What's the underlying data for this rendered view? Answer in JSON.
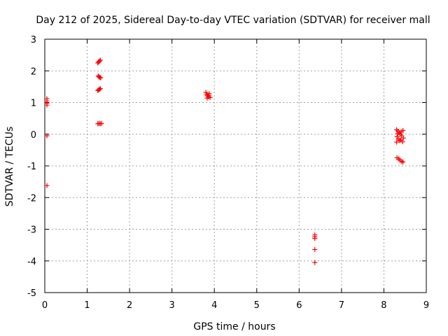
{
  "chart_data": {
    "type": "scatter",
    "title": "Day 212 of 2025, Sidereal Day-to-day VTEC variation (SDTVAR) for receiver mall",
    "xlabel": "GPS time / hours",
    "ylabel": "SDTVAR / TECUs",
    "xlim": [
      0,
      9
    ],
    "ylim": [
      -5,
      3
    ],
    "x_ticks": [
      0,
      1,
      2,
      3,
      4,
      5,
      6,
      7,
      8,
      9
    ],
    "y_ticks": [
      -5,
      -4,
      -3,
      -2,
      -1,
      0,
      1,
      2,
      3
    ],
    "x_tick_labels": [
      "0",
      "1",
      "2",
      "3",
      "4",
      "5",
      "6",
      "7",
      "8",
      "9"
    ],
    "y_tick_labels": [
      "-5",
      "-4",
      "-3",
      "-2",
      "-1",
      "0",
      "1",
      "2",
      "3"
    ],
    "grid": true,
    "marker": "+",
    "marker_color": "#ff0000",
    "series": [
      {
        "name": "SDTVAR",
        "points": [
          [
            0.05,
            1.12
          ],
          [
            0.05,
            1.05
          ],
          [
            0.05,
            0.98
          ],
          [
            0.05,
            0.92
          ],
          [
            0.05,
            -0.05
          ],
          [
            0.05,
            -1.62
          ],
          [
            1.25,
            2.25
          ],
          [
            1.27,
            2.28
          ],
          [
            1.29,
            2.31
          ],
          [
            1.31,
            2.34
          ],
          [
            1.26,
            1.84
          ],
          [
            1.28,
            1.81
          ],
          [
            1.3,
            1.79
          ],
          [
            1.32,
            1.78
          ],
          [
            1.25,
            1.38
          ],
          [
            1.27,
            1.4
          ],
          [
            1.29,
            1.42
          ],
          [
            1.31,
            1.44
          ],
          [
            1.25,
            0.33
          ],
          [
            1.28,
            0.34
          ],
          [
            1.31,
            0.33
          ],
          [
            1.34,
            0.34
          ],
          [
            3.8,
            1.32
          ],
          [
            3.82,
            1.26
          ],
          [
            3.84,
            1.22
          ],
          [
            3.86,
            1.18
          ],
          [
            3.88,
            1.28
          ],
          [
            3.9,
            1.16
          ],
          [
            3.83,
            1.14
          ],
          [
            3.87,
            1.22
          ],
          [
            8.3,
            0.14
          ],
          [
            8.33,
            0.1
          ],
          [
            8.36,
            0.05
          ],
          [
            8.39,
            0.0
          ],
          [
            8.42,
            -0.05
          ],
          [
            8.45,
            0.12
          ],
          [
            8.31,
            -0.08
          ],
          [
            8.34,
            -0.15
          ],
          [
            8.37,
            -0.2
          ],
          [
            8.4,
            -0.18
          ],
          [
            8.44,
            -0.24
          ],
          [
            8.3,
            -0.25
          ],
          [
            8.33,
            0.02
          ],
          [
            8.41,
            0.08
          ],
          [
            8.46,
            -0.12
          ],
          [
            8.31,
            -0.74
          ],
          [
            8.35,
            -0.78
          ],
          [
            8.38,
            -0.82
          ],
          [
            8.42,
            -0.86
          ],
          [
            8.45,
            -0.88
          ],
          [
            6.37,
            -3.18
          ],
          [
            6.37,
            -3.24
          ],
          [
            6.37,
            -3.29
          ],
          [
            6.37,
            -3.64
          ],
          [
            6.37,
            -4.05
          ]
        ]
      }
    ]
  }
}
